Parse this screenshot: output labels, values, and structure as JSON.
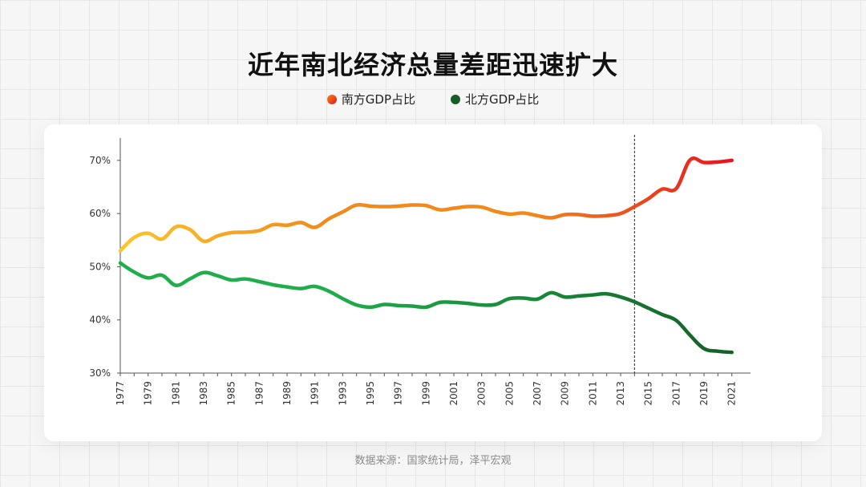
{
  "title": "近年南北经济总量差距迅速扩大",
  "source": "数据来源：国家统计局，泽平宏观",
  "legend": {
    "south": "南方GDP占比",
    "north": "北方GDP占比"
  },
  "colors": {
    "south_start": "#fcc52a",
    "south_mid": "#f28a1a",
    "south_end": "#e8121f",
    "north_start": "#1fae4b",
    "north_mid": "#188a3a",
    "north_end": "#155f27"
  },
  "chart_data": {
    "type": "line",
    "title": "近年南北经济总量差距迅速扩大",
    "xlabel": "",
    "ylabel": "",
    "xlim": [
      1977,
      2022
    ],
    "ylim": [
      30,
      73
    ],
    "yticks": [
      30,
      40,
      50,
      60,
      70
    ],
    "ytick_labels": [
      "30%",
      "40%",
      "50%",
      "60%",
      "70%"
    ],
    "xtick_labels": [
      "1977",
      "1979",
      "1981",
      "1983",
      "1985",
      "1987",
      "1989",
      "1991",
      "1993",
      "1995",
      "1997",
      "1999",
      "2001",
      "2003",
      "2005",
      "2007",
      "2009",
      "2011",
      "2013",
      "2015",
      "2017",
      "2019",
      "2021"
    ],
    "reference_line_x": 2014,
    "legend_position": "top-center",
    "grid": false,
    "x": [
      1977,
      1978,
      1979,
      1980,
      1981,
      1982,
      1983,
      1984,
      1985,
      1986,
      1987,
      1988,
      1989,
      1990,
      1991,
      1992,
      1993,
      1994,
      1995,
      1996,
      1997,
      1998,
      1999,
      2000,
      2001,
      2002,
      2003,
      2004,
      2005,
      2006,
      2007,
      2008,
      2009,
      2010,
      2011,
      2012,
      2013,
      2014,
      2015,
      2016,
      2017,
      2018,
      2019,
      2020,
      2021
    ],
    "series": [
      {
        "name": "南方GDP占比",
        "values": [
          53.0,
          55.5,
          56.3,
          55.2,
          57.5,
          57.0,
          54.8,
          55.8,
          56.4,
          56.5,
          56.8,
          57.9,
          57.8,
          58.3,
          57.4,
          59.0,
          60.3,
          61.6,
          61.4,
          61.3,
          61.4,
          61.6,
          61.5,
          60.7,
          61.0,
          61.3,
          61.2,
          60.4,
          59.9,
          60.1,
          59.6,
          59.2,
          59.8,
          59.8,
          59.5,
          59.6,
          60.0,
          61.3,
          62.8,
          64.6,
          64.7,
          70.1,
          69.6,
          69.7,
          70.0
        ]
      },
      {
        "name": "北方GDP占比",
        "values": [
          50.7,
          49.0,
          47.9,
          48.4,
          46.5,
          47.7,
          48.9,
          48.3,
          47.5,
          47.7,
          47.2,
          46.6,
          46.2,
          45.9,
          46.3,
          45.4,
          44.0,
          42.8,
          42.4,
          42.9,
          42.7,
          42.6,
          42.4,
          43.3,
          43.3,
          43.1,
          42.8,
          42.9,
          44.0,
          44.1,
          43.9,
          45.1,
          44.3,
          44.5,
          44.7,
          44.9,
          44.3,
          43.4,
          42.2,
          41.0,
          39.9,
          37.1,
          34.6,
          34.1,
          33.9
        ]
      }
    ]
  }
}
